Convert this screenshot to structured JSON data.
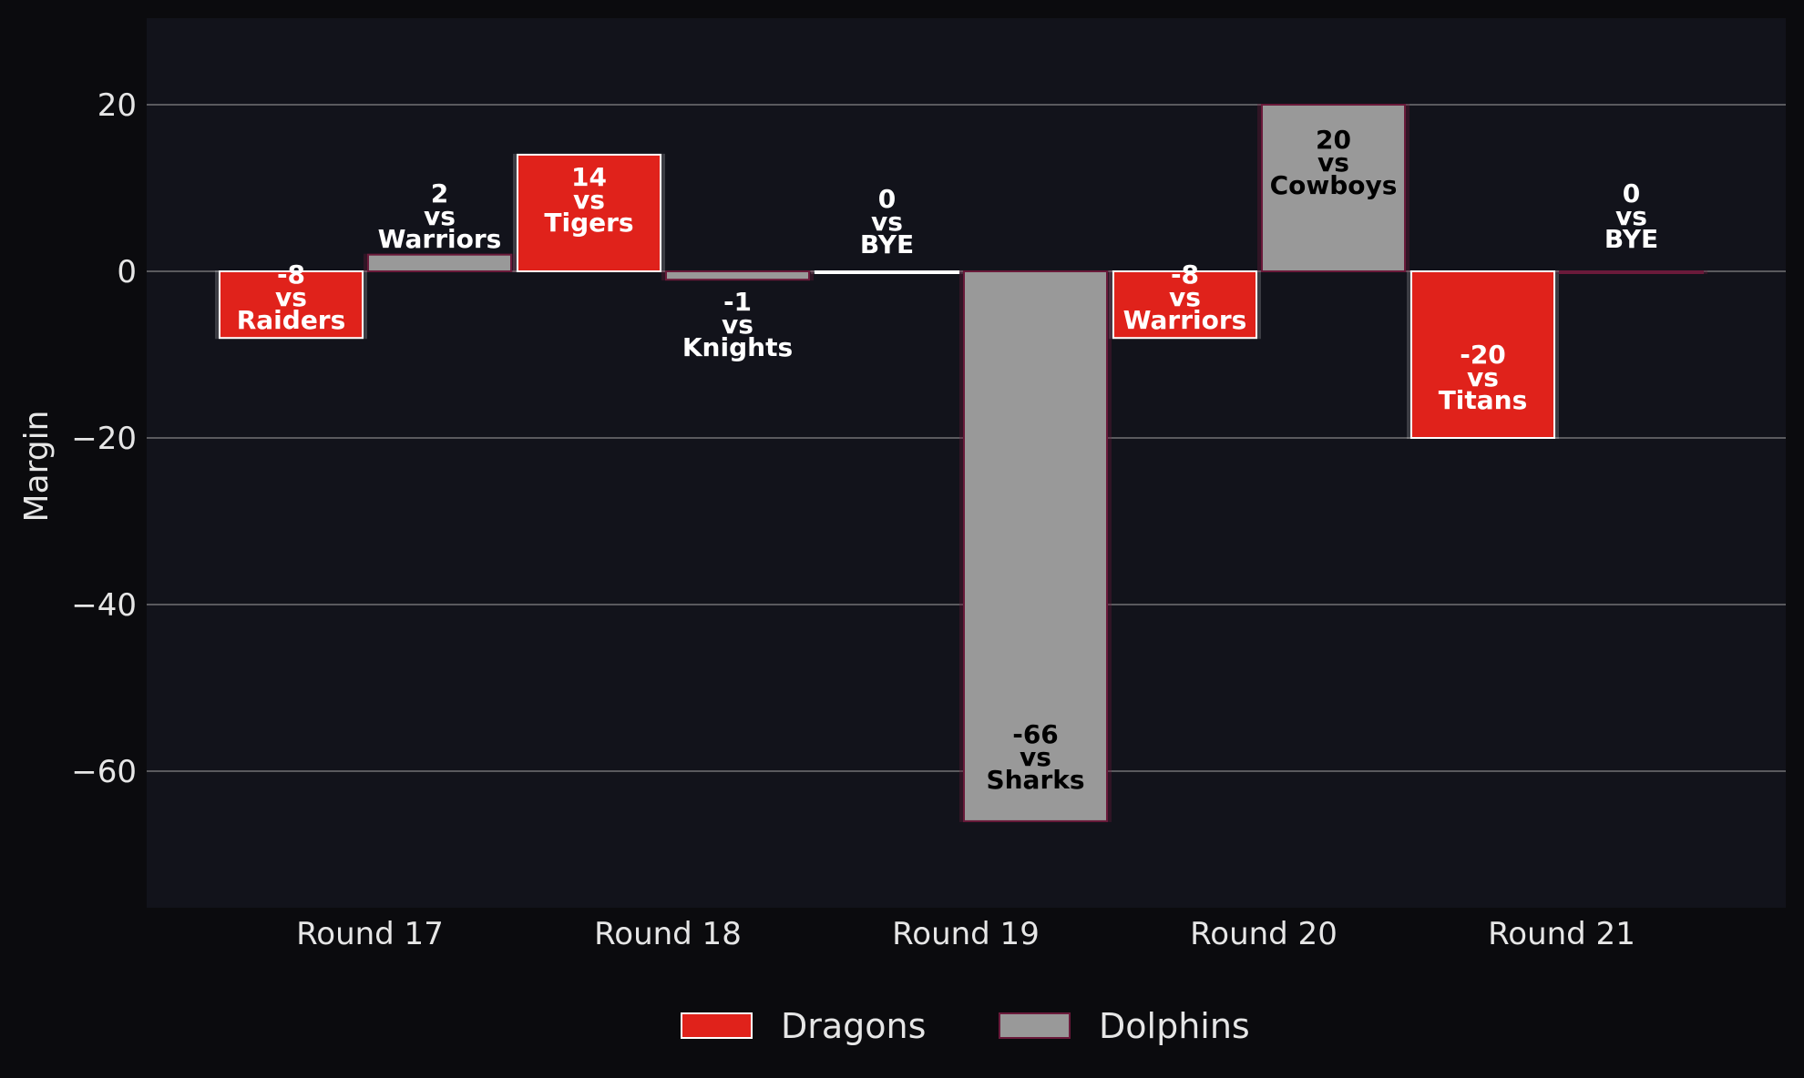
{
  "chart_data": {
    "type": "bar",
    "categories": [
      "Round 17",
      "Round 18",
      "Round 19",
      "Round 20",
      "Round 21"
    ],
    "ylabel": "Margin",
    "ylim": [
      -77,
      30
    ],
    "yticks": [
      20,
      0,
      -20,
      -40,
      -60
    ],
    "ytick_labels": [
      "20",
      "0",
      "−20",
      "−40",
      "−60"
    ],
    "grid": "horizontal",
    "legend_position": "bottom-center",
    "series": [
      {
        "name": "Dragons",
        "color": "#e0221b",
        "edge": "#ffffff",
        "values": [
          -8,
          14,
          0,
          -8,
          -20
        ],
        "opponents": [
          "Raiders",
          "Tigers",
          "BYE",
          "Warriors",
          "Titans"
        ],
        "labels": [
          [
            "-8",
            "vs",
            "Raiders"
          ],
          [
            "14",
            "vs",
            "Tigers"
          ],
          [
            "0",
            "vs",
            "BYE"
          ],
          [
            "-8",
            "vs",
            "Warriors"
          ],
          [
            "-20",
            "vs",
            "Titans"
          ]
        ]
      },
      {
        "name": "Dolphins",
        "color": "#999999",
        "edge": "#6a1a3a",
        "values": [
          2,
          -1,
          -66,
          20,
          0
        ],
        "opponents": [
          "Warriors",
          "Knights",
          "Sharks",
          "Cowboys",
          "BYE"
        ],
        "labels": [
          [
            "2",
            "vs",
            "Warriors"
          ],
          [
            "-1",
            "vs",
            "Knights"
          ],
          [
            "-66",
            "vs",
            "Sharks"
          ],
          [
            "20",
            "vs",
            "Cowboys"
          ],
          [
            "0",
            "vs",
            "BYE"
          ]
        ]
      }
    ]
  }
}
